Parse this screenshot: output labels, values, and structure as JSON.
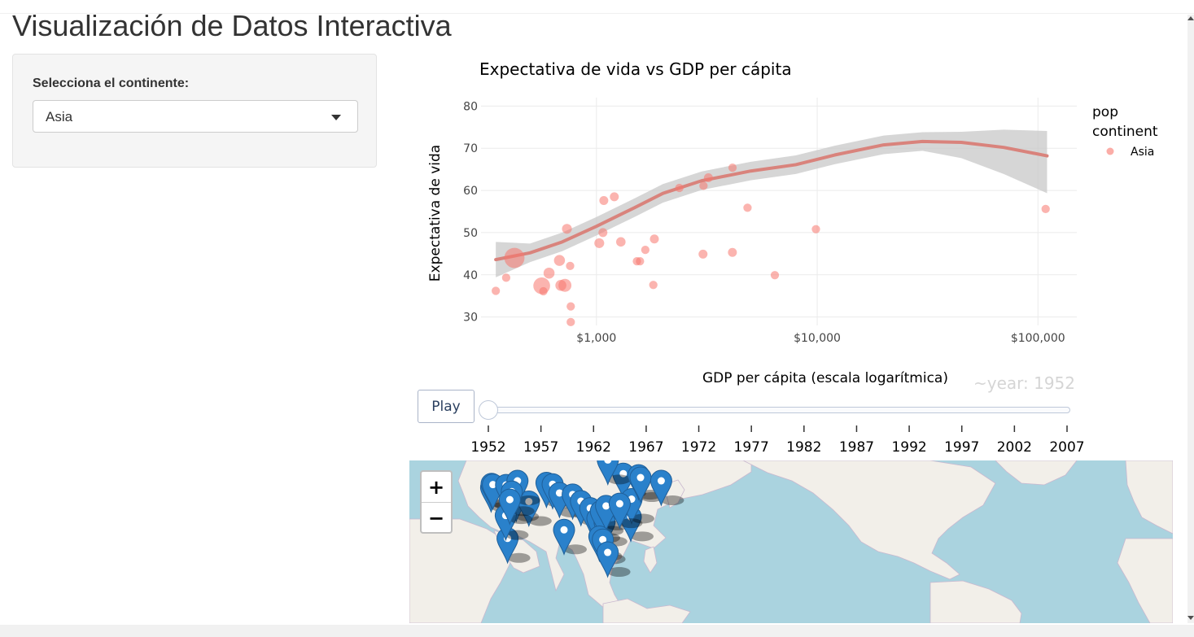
{
  "page": {
    "title": "Visualización de Datos Interactiva"
  },
  "sidebar": {
    "select_label": "Selecciona el continente:",
    "selected_value": "Asia"
  },
  "chart_data": {
    "type": "scatter",
    "title": "Expectativa de vida vs GDP per cápita",
    "xlabel": "GDP per cápita (escala logarítmica)",
    "ylabel": "Expectativa de vida",
    "x_scale": "log",
    "xlim": [
      300,
      150000
    ],
    "ylim": [
      28,
      82
    ],
    "x_ticks": [
      1000,
      10000,
      100000
    ],
    "x_tick_labels": [
      "$1,000",
      "$10,000",
      "$100,000"
    ],
    "y_ticks": [
      30,
      40,
      50,
      60,
      70,
      80
    ],
    "grid": true,
    "legend": {
      "title_line1": "pop",
      "title_line2": "continent",
      "entries": [
        "Asia"
      ],
      "placement": "right"
    },
    "series": [
      {
        "name": "Asia",
        "color": "#f8766d",
        "points": [
          {
            "x": 350,
            "y": 36.2,
            "pop": 2
          },
          {
            "x": 390,
            "y": 39.3,
            "pop": 2
          },
          {
            "x": 425,
            "y": 44.0,
            "pop": 60
          },
          {
            "x": 565,
            "y": 37.4,
            "pop": 35
          },
          {
            "x": 575,
            "y": 36.1,
            "pop": 2
          },
          {
            "x": 610,
            "y": 40.4,
            "pop": 8
          },
          {
            "x": 680,
            "y": 43.4,
            "pop": 8
          },
          {
            "x": 690,
            "y": 37.5,
            "pop": 8
          },
          {
            "x": 720,
            "y": 37.5,
            "pop": 15
          },
          {
            "x": 735,
            "y": 50.9,
            "pop": 5
          },
          {
            "x": 760,
            "y": 42.1,
            "pop": 2
          },
          {
            "x": 765,
            "y": 32.5,
            "pop": 2
          },
          {
            "x": 765,
            "y": 28.8,
            "pop": 2
          },
          {
            "x": 1030,
            "y": 47.5,
            "pop": 5
          },
          {
            "x": 1070,
            "y": 50.0,
            "pop": 3
          },
          {
            "x": 1080,
            "y": 57.6,
            "pop": 3
          },
          {
            "x": 1205,
            "y": 58.5,
            "pop": 3
          },
          {
            "x": 1290,
            "y": 47.8,
            "pop": 4
          },
          {
            "x": 1525,
            "y": 43.2,
            "pop": 2
          },
          {
            "x": 1575,
            "y": 43.2,
            "pop": 2
          },
          {
            "x": 1665,
            "y": 45.9,
            "pop": 2
          },
          {
            "x": 1810,
            "y": 37.6,
            "pop": 2
          },
          {
            "x": 1830,
            "y": 48.5,
            "pop": 3
          },
          {
            "x": 2375,
            "y": 60.6,
            "pop": 2
          },
          {
            "x": 3040,
            "y": 44.9,
            "pop": 3
          },
          {
            "x": 3055,
            "y": 61.1,
            "pop": 2
          },
          {
            "x": 3215,
            "y": 63.0,
            "pop": 3
          },
          {
            "x": 4130,
            "y": 45.3,
            "pop": 3
          },
          {
            "x": 4135,
            "y": 65.4,
            "pop": 2
          },
          {
            "x": 4835,
            "y": 55.9,
            "pop": 2
          },
          {
            "x": 6430,
            "y": 39.9,
            "pop": 2
          },
          {
            "x": 9870,
            "y": 50.8,
            "pop": 2
          },
          {
            "x": 108380,
            "y": 55.6,
            "pop": 2
          }
        ]
      }
    ],
    "trend": [
      {
        "x": 350,
        "y": 43.6
      },
      {
        "x": 500,
        "y": 45.2
      },
      {
        "x": 700,
        "y": 47.8
      },
      {
        "x": 1000,
        "y": 51.5
      },
      {
        "x": 1500,
        "y": 56.0
      },
      {
        "x": 2000,
        "y": 59.3
      },
      {
        "x": 3000,
        "y": 62.3
      },
      {
        "x": 4000,
        "y": 63.6
      },
      {
        "x": 5000,
        "y": 64.6
      },
      {
        "x": 8000,
        "y": 66.1
      },
      {
        "x": 12000,
        "y": 68.4
      },
      {
        "x": 20000,
        "y": 70.8
      },
      {
        "x": 30000,
        "y": 71.6
      },
      {
        "x": 45000,
        "y": 71.4
      },
      {
        "x": 70000,
        "y": 70.2
      },
      {
        "x": 110000,
        "y": 68.2
      }
    ],
    "trend_color": "#d9837c",
    "band_color": "#c8c8c8"
  },
  "animation": {
    "play_label": "Play",
    "current_label": "~year: 1952",
    "years": [
      "1952",
      "1957",
      "1962",
      "1967",
      "1972",
      "1977",
      "1982",
      "1987",
      "1992",
      "1997",
      "2002",
      "2007"
    ],
    "current_index": 0
  },
  "map": {
    "zoom_in_label": "+",
    "zoom_out_label": "−",
    "marker_color": "#2a81cb",
    "markers": [
      {
        "lon": 35.2,
        "lat": 31.8
      },
      {
        "lon": 35.5,
        "lat": 33.9
      },
      {
        "lon": 36.3,
        "lat": 33.5
      },
      {
        "lon": 44.4,
        "lat": 33.3
      },
      {
        "lon": 45.3,
        "lat": 2.0
      },
      {
        "lon": 50.6,
        "lat": 26.2
      },
      {
        "lon": 44.2,
        "lat": 15.4
      },
      {
        "lon": 58.4,
        "lat": 23.6
      },
      {
        "lon": 51.4,
        "lat": 35.7
      },
      {
        "lon": 69.2,
        "lat": 34.5
      },
      {
        "lon": 73.0,
        "lat": 33.7
      },
      {
        "lon": 77.2,
        "lat": 28.6
      },
      {
        "lon": 80.0,
        "lat": 7.0
      },
      {
        "lon": 85.3,
        "lat": 27.7
      },
      {
        "lon": 90.4,
        "lat": 23.8
      },
      {
        "lon": 96.1,
        "lat": 19.7
      },
      {
        "lon": 100.5,
        "lat": 13.7
      },
      {
        "lon": 104.9,
        "lat": 11.6
      },
      {
        "lon": 102.6,
        "lat": 17.9
      },
      {
        "lon": 105.8,
        "lat": 21.0
      },
      {
        "lon": 101.7,
        "lat": 3.1
      },
      {
        "lon": 103.8,
        "lat": 1.3
      },
      {
        "lon": 106.8,
        "lat": -6.2
      },
      {
        "lon": 121.0,
        "lat": 14.6
      },
      {
        "lon": 116.4,
        "lat": 39.9
      },
      {
        "lon": 121.5,
        "lat": 25.0
      },
      {
        "lon": 114.2,
        "lat": 22.3
      },
      {
        "lon": 106.9,
        "lat": 47.9
      },
      {
        "lon": 125.8,
        "lat": 39.0
      },
      {
        "lon": 127.0,
        "lat": 37.6
      },
      {
        "lon": 139.7,
        "lat": 35.7
      },
      {
        "lon": 47.9,
        "lat": 29.4
      },
      {
        "lon": 46.7,
        "lat": 24.7
      }
    ]
  }
}
